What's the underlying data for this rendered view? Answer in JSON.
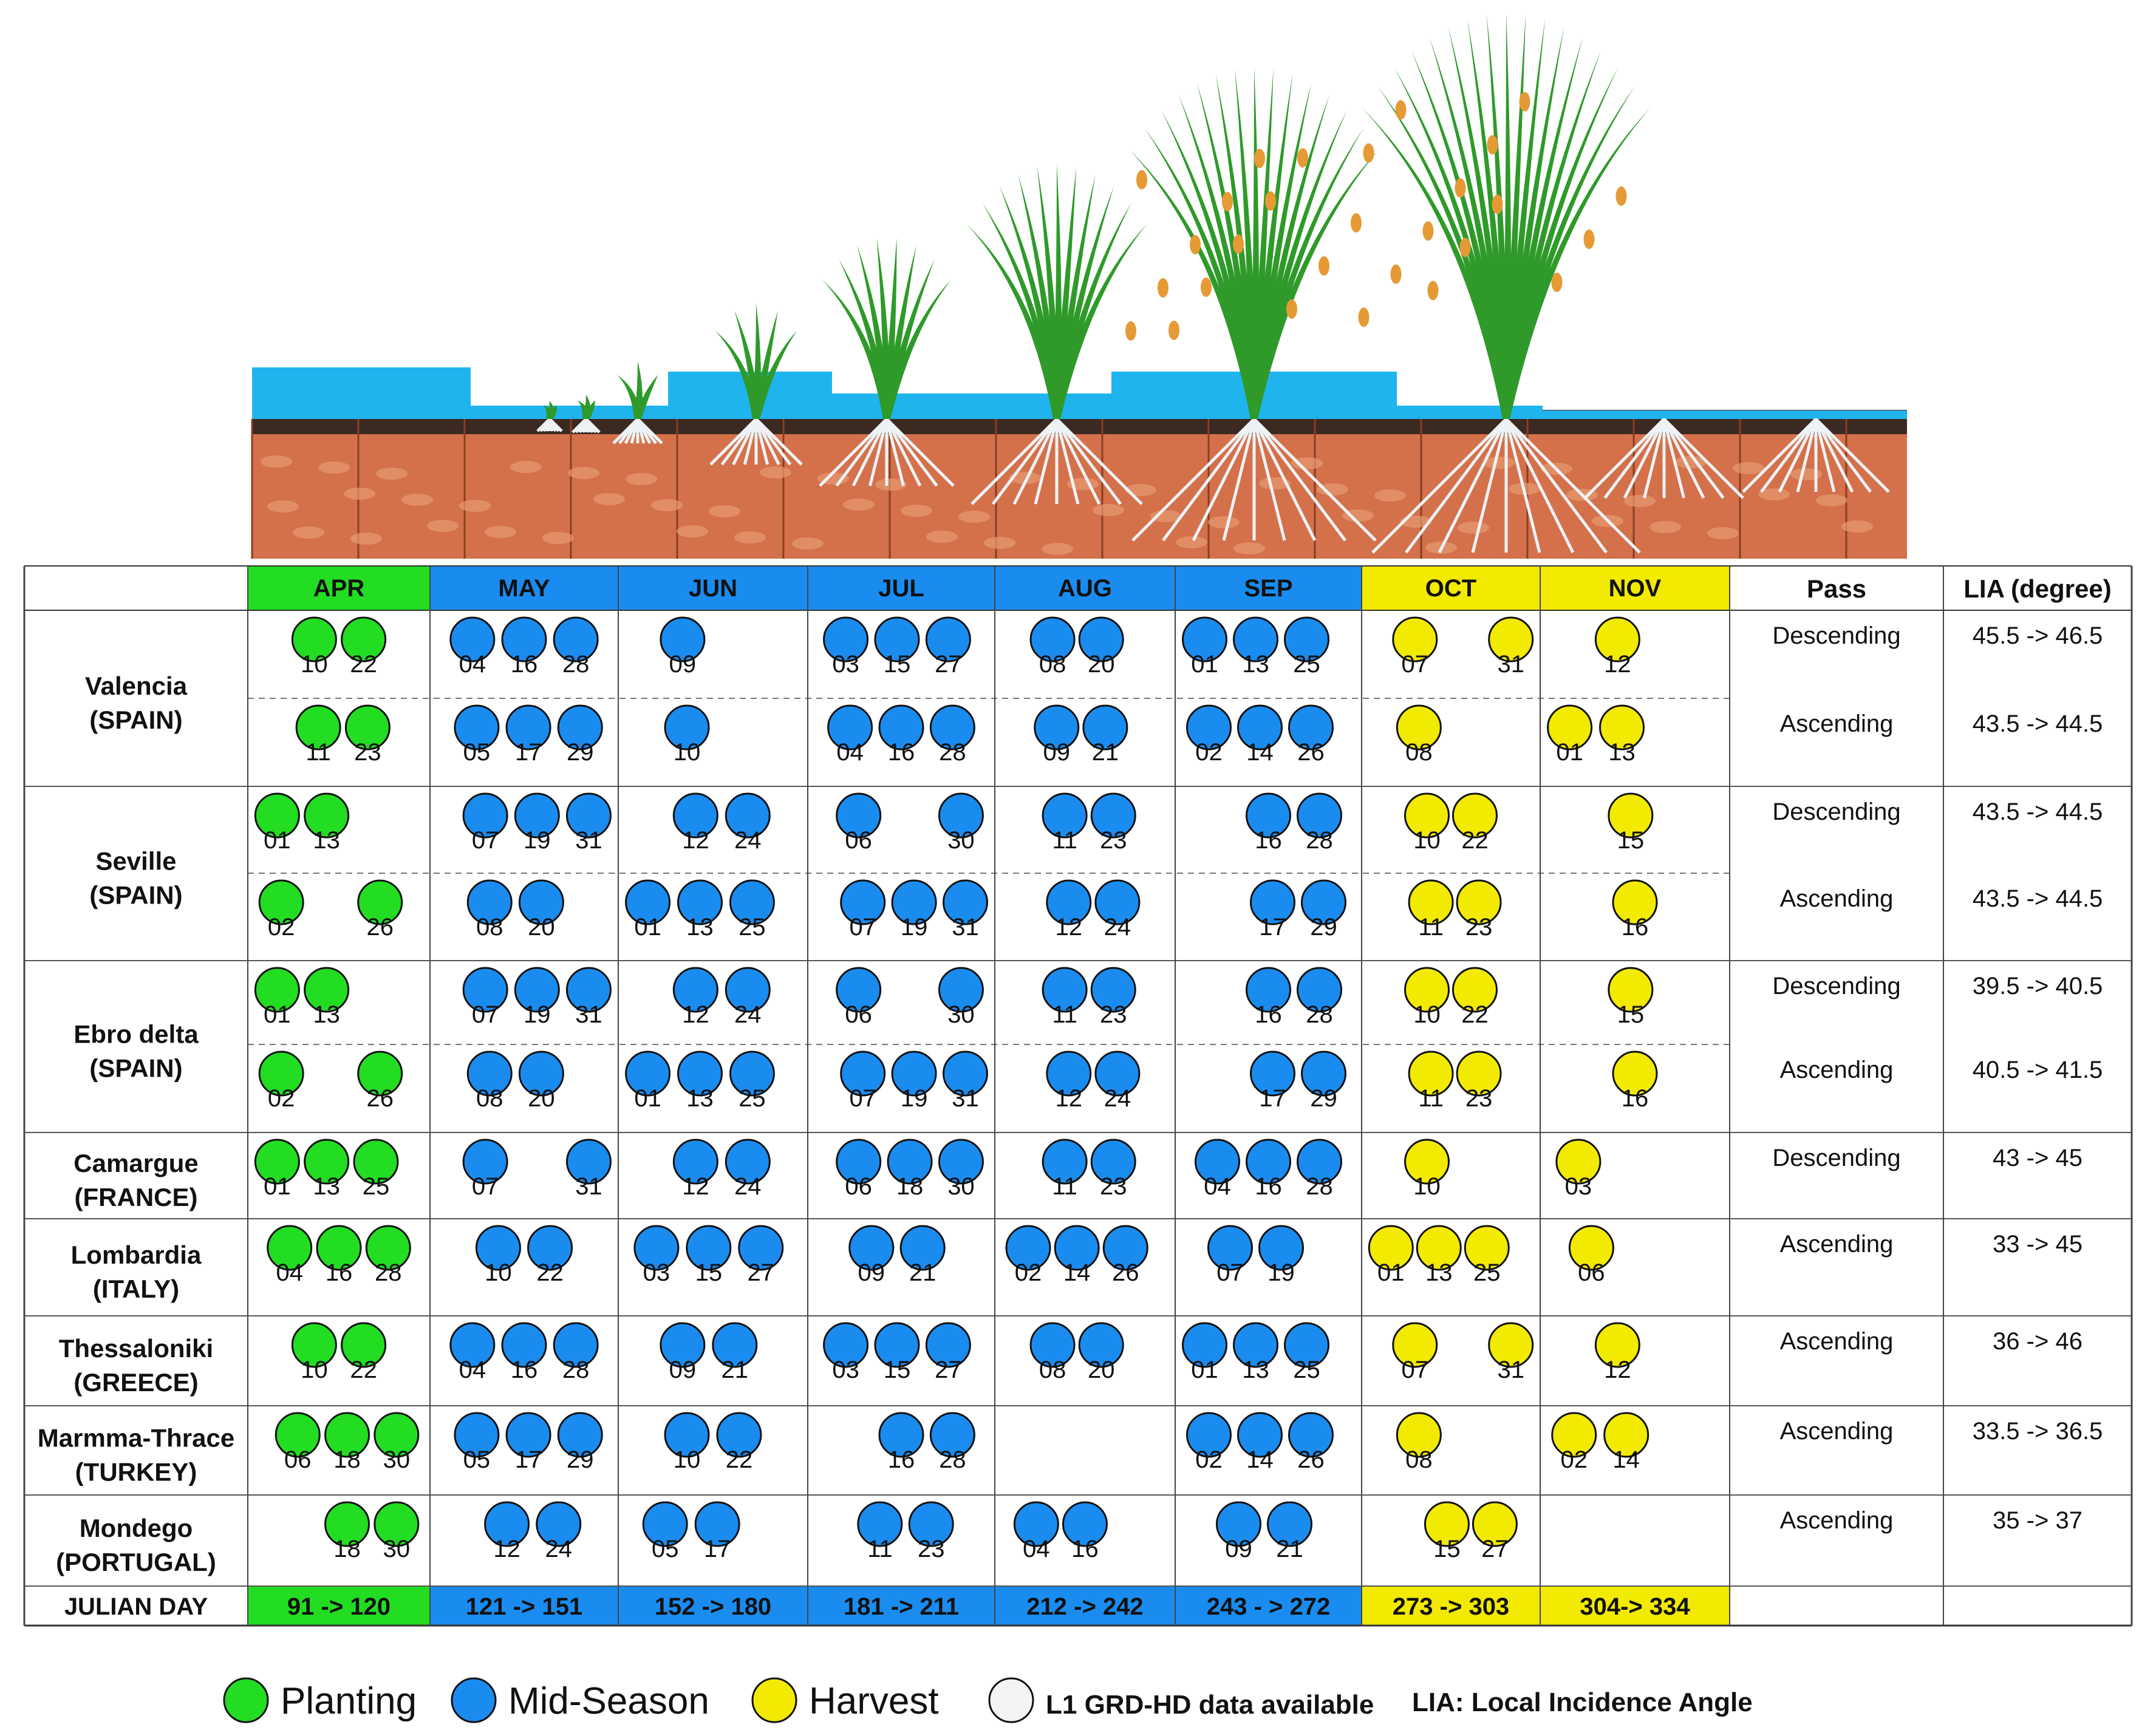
{
  "months": [
    {
      "label": "APR",
      "phase": "planting",
      "julian": "91 -> 120"
    },
    {
      "label": "MAY",
      "phase": "mid",
      "julian": "121 -> 151"
    },
    {
      "label": "JUN",
      "phase": "mid",
      "julian": "152 -> 180"
    },
    {
      "label": "JUL",
      "phase": "mid",
      "julian": "181 -> 211"
    },
    {
      "label": "AUG",
      "phase": "mid",
      "julian": "212 -> 242"
    },
    {
      "label": "SEP",
      "phase": "mid",
      "julian": "243 - > 272"
    },
    {
      "label": "OCT",
      "phase": "harvest",
      "julian": "273 -> 303"
    },
    {
      "label": "NOV",
      "phase": "harvest",
      "julian": "304-> 334"
    }
  ],
  "headers": {
    "pass": "Pass",
    "lia": "LIA (degree)",
    "julian_day": "JULIAN DAY"
  },
  "sites": [
    {
      "name": "Valencia",
      "country": "(SPAIN)",
      "passes": [
        {
          "pass": "Descending",
          "lia": "45.5 -> 46.5",
          "months": [
            [
              "10",
              "22"
            ],
            [
              "04",
              "16",
              "28"
            ],
            [
              "09"
            ],
            [
              "03",
              "15",
              "27"
            ],
            [
              "08",
              "20"
            ],
            [
              "01",
              "13",
              "25"
            ],
            [
              "07",
              "31"
            ],
            [
              "12"
            ]
          ]
        },
        {
          "pass": "Ascending",
          "lia": "43.5 -> 44.5",
          "months": [
            [
              "11",
              "23"
            ],
            [
              "05",
              "17",
              "29"
            ],
            [
              "10"
            ],
            [
              "04",
              "16",
              "28"
            ],
            [
              "09",
              "21"
            ],
            [
              "02",
              "14",
              "26"
            ],
            [
              "08"
            ],
            [
              "01",
              "13"
            ]
          ]
        }
      ]
    },
    {
      "name": "Seville",
      "country": "(SPAIN)",
      "passes": [
        {
          "pass": "Descending",
          "lia": "43.5 -> 44.5",
          "months": [
            [
              "01",
              "13"
            ],
            [
              "07",
              "19",
              "31"
            ],
            [
              "12",
              "24"
            ],
            [
              "06",
              "30"
            ],
            [
              "11",
              "23"
            ],
            [
              "16",
              "28"
            ],
            [
              "10",
              "22"
            ],
            [
              "15"
            ]
          ]
        },
        {
          "pass": "Ascending",
          "lia": "43.5 -> 44.5",
          "months": [
            [
              "02",
              "26"
            ],
            [
              "08",
              "20"
            ],
            [
              "01",
              "13",
              "25"
            ],
            [
              "07",
              "19",
              "31"
            ],
            [
              "12",
              "24"
            ],
            [
              "17",
              "29"
            ],
            [
              "11",
              "23"
            ],
            [
              "16"
            ]
          ]
        }
      ]
    },
    {
      "name": "Ebro delta",
      "country": "(SPAIN)",
      "passes": [
        {
          "pass": "Descending",
          "lia": "39.5 -> 40.5",
          "months": [
            [
              "01",
              "13"
            ],
            [
              "07",
              "19",
              "31"
            ],
            [
              "12",
              "24"
            ],
            [
              "06",
              "30"
            ],
            [
              "11",
              "23"
            ],
            [
              "16",
              "28"
            ],
            [
              "10",
              "22"
            ],
            [
              "15"
            ]
          ]
        },
        {
          "pass": "Ascending",
          "lia": "40.5 -> 41.5",
          "months": [
            [
              "02",
              "26"
            ],
            [
              "08",
              "20"
            ],
            [
              "01",
              "13",
              "25"
            ],
            [
              "07",
              "19",
              "31"
            ],
            [
              "12",
              "24"
            ],
            [
              "17",
              "29"
            ],
            [
              "11",
              "23"
            ],
            [
              "16"
            ]
          ]
        }
      ]
    },
    {
      "name": "Camargue",
      "country": "(FRANCE)",
      "passes": [
        {
          "pass": "Descending",
          "lia": "43 -> 45",
          "months": [
            [
              "01",
              "13",
              "25"
            ],
            [
              "07",
              "31"
            ],
            [
              "12",
              "24"
            ],
            [
              "06",
              "18",
              "30"
            ],
            [
              "11",
              "23"
            ],
            [
              "04",
              "16",
              "28"
            ],
            [
              "10"
            ],
            [
              "03"
            ]
          ]
        }
      ]
    },
    {
      "name": "Lombardia",
      "country": "(ITALY)",
      "passes": [
        {
          "pass": "Ascending",
          "lia": "33 -> 45",
          "months": [
            [
              "04",
              "16",
              "28"
            ],
            [
              "10",
              "22"
            ],
            [
              "03",
              "15",
              "27"
            ],
            [
              "09",
              "21"
            ],
            [
              "02",
              "14",
              "26"
            ],
            [
              "07",
              "19"
            ],
            [
              "01",
              "13",
              "25"
            ],
            [
              "06"
            ]
          ]
        }
      ]
    },
    {
      "name": "Thessaloniki",
      "country": "(GREECE)",
      "passes": [
        {
          "pass": "Ascending",
          "lia": "36 -> 46",
          "months": [
            [
              "10",
              "22"
            ],
            [
              "04",
              "16",
              "28"
            ],
            [
              "09",
              "21"
            ],
            [
              "03",
              "15",
              "27"
            ],
            [
              "08",
              "20"
            ],
            [
              "01",
              "13",
              "25"
            ],
            [
              "07",
              "31"
            ],
            [
              "12"
            ]
          ]
        }
      ]
    },
    {
      "name": "Marmma-Thrace",
      "country": "(TURKEY)",
      "passes": [
        {
          "pass": "Ascending",
          "lia": "33.5 -> 36.5",
          "months": [
            [
              "06",
              "18",
              "30"
            ],
            [
              "05",
              "17",
              "29"
            ],
            [
              "10",
              "22"
            ],
            [
              "16",
              "28"
            ],
            [],
            [
              "02",
              "14",
              "26"
            ],
            [
              "08"
            ],
            [
              "02",
              "14"
            ]
          ]
        }
      ]
    },
    {
      "name": "Mondego",
      "country": "(PORTUGAL)",
      "passes": [
        {
          "pass": "Ascending",
          "lia": "35 -> 37",
          "months": [
            [
              "18",
              "30"
            ],
            [
              "12",
              "24"
            ],
            [
              "05",
              "17"
            ],
            [
              "11",
              "23"
            ],
            [
              "04",
              "16"
            ],
            [
              "09",
              "21"
            ],
            [
              "15",
              "27"
            ],
            []
          ]
        }
      ]
    }
  ],
  "legend": {
    "planting": "Planting",
    "mid": "Mid-Season",
    "harvest": "Harvest",
    "available": "L1 GRD-HD data available",
    "lia_note": "LIA: Local Incidence Angle"
  },
  "colors": {
    "planting": "#22dd22",
    "mid": "#1a8cf0",
    "harvest": "#f2ea00",
    "water": "#1fb4ee",
    "soil": "#d4714a",
    "soil_dark": "#3a2a22",
    "grass": "#2f9a2a",
    "grain": "#e69a35",
    "root": "#eef2f5"
  }
}
